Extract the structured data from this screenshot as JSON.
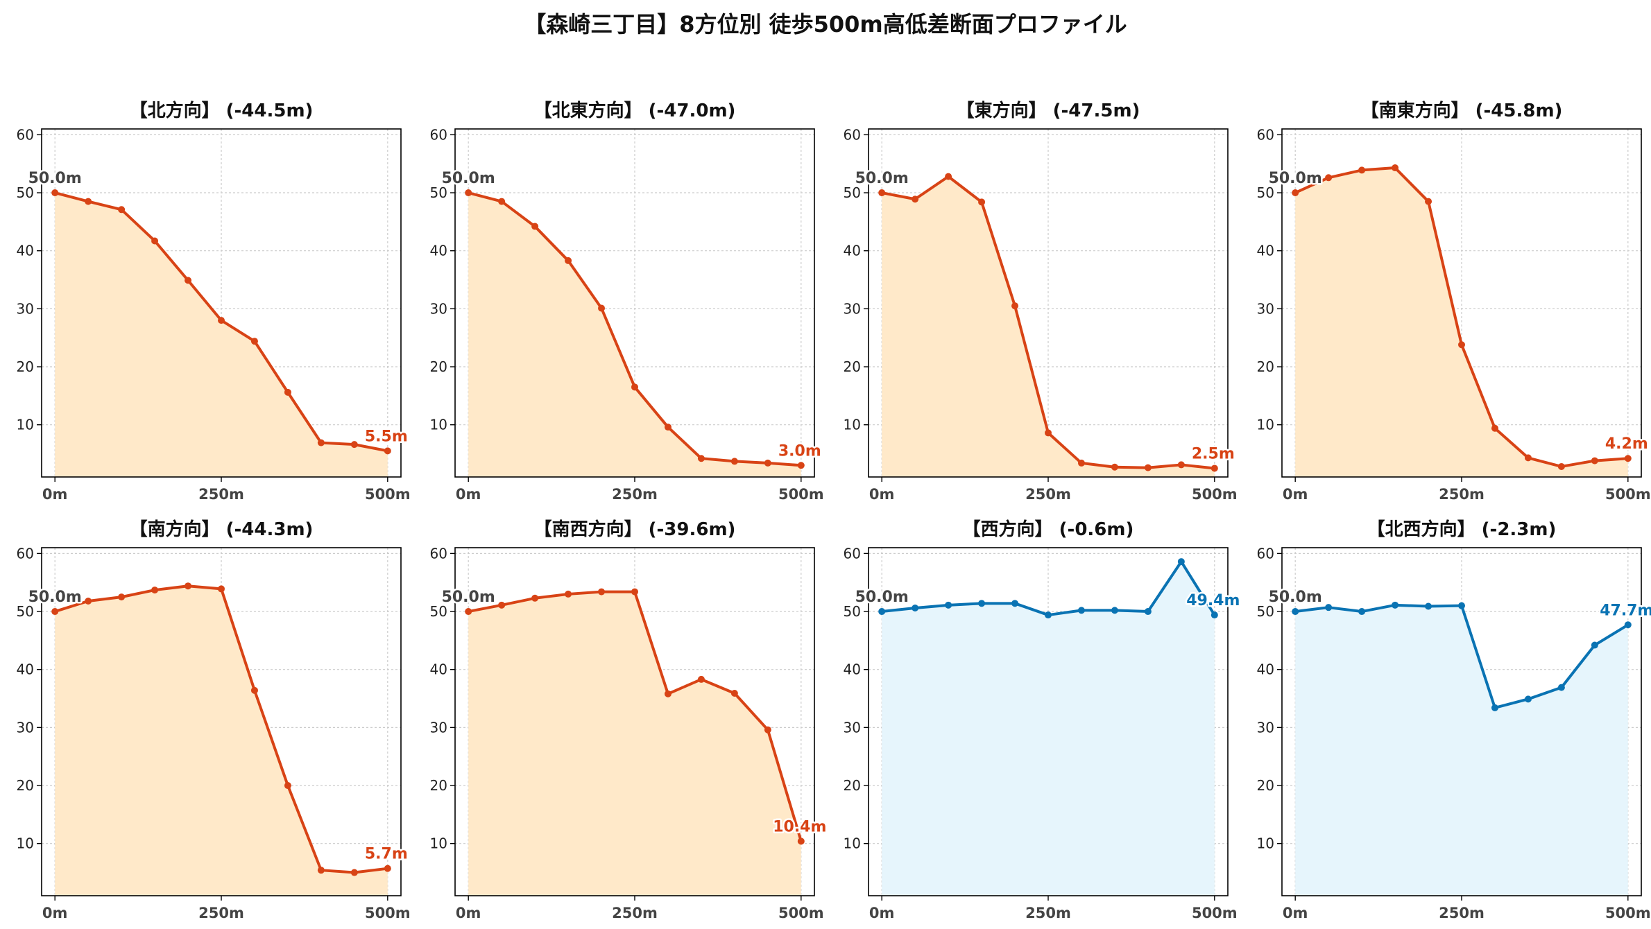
{
  "title": "【森崎三丁目】8方位別 徒歩500m高低差断面プロファイル",
  "colors": {
    "down_line": "#d84315",
    "down_fill": "#ffe9c9",
    "flat_line": "#0a73b3",
    "flat_fill": "#e6f5fc",
    "start_label": "#444444",
    "grid": "#cccccc"
  },
  "chart_data": [
    {
      "type": "line",
      "title": "【北方向】 (-44.5m)",
      "theme": "down",
      "x": [
        0,
        50,
        100,
        150,
        200,
        250,
        300,
        350,
        400,
        450,
        500
      ],
      "y": [
        50.0,
        48.5,
        47.1,
        41.7,
        34.9,
        28.0,
        24.4,
        15.6,
        6.9,
        6.6,
        5.5
      ],
      "xticks": [
        0,
        250,
        500
      ],
      "xtick_labels": [
        "0m",
        "250m",
        "500m"
      ],
      "yticks": [
        10,
        20,
        30,
        40,
        50,
        60
      ],
      "ytick_labels": [
        "10",
        "20",
        "30",
        "40",
        "50",
        "60"
      ],
      "xlim": [
        -20,
        520
      ],
      "ylim": [
        1,
        61
      ],
      "start_label": "50.0m",
      "end_label": "5.5m"
    },
    {
      "type": "line",
      "title": "【北東方向】 (-47.0m)",
      "theme": "down",
      "x": [
        0,
        50,
        100,
        150,
        200,
        250,
        300,
        350,
        400,
        450,
        500
      ],
      "y": [
        50.0,
        48.5,
        44.2,
        38.3,
        30.1,
        16.5,
        9.6,
        4.2,
        3.7,
        3.4,
        3.0
      ],
      "xticks": [
        0,
        250,
        500
      ],
      "xtick_labels": [
        "0m",
        "250m",
        "500m"
      ],
      "yticks": [
        10,
        20,
        30,
        40,
        50,
        60
      ],
      "ytick_labels": [
        "10",
        "20",
        "30",
        "40",
        "50",
        "60"
      ],
      "xlim": [
        -20,
        520
      ],
      "ylim": [
        1,
        61
      ],
      "start_label": "50.0m",
      "end_label": "3.0m"
    },
    {
      "type": "line",
      "title": "【東方向】 (-47.5m)",
      "theme": "down",
      "x": [
        0,
        50,
        100,
        150,
        200,
        250,
        300,
        350,
        400,
        450,
        500
      ],
      "y": [
        50.0,
        48.9,
        52.8,
        48.4,
        30.5,
        8.6,
        3.4,
        2.7,
        2.6,
        3.1,
        2.5
      ],
      "xticks": [
        0,
        250,
        500
      ],
      "xtick_labels": [
        "0m",
        "250m",
        "500m"
      ],
      "yticks": [
        10,
        20,
        30,
        40,
        50,
        60
      ],
      "ytick_labels": [
        "10",
        "20",
        "30",
        "40",
        "50",
        "60"
      ],
      "xlim": [
        -20,
        520
      ],
      "ylim": [
        1,
        61
      ],
      "start_label": "50.0m",
      "end_label": "2.5m"
    },
    {
      "type": "line",
      "title": "【南東方向】 (-45.8m)",
      "theme": "down",
      "x": [
        0,
        50,
        100,
        150,
        200,
        250,
        300,
        350,
        400,
        450,
        500
      ],
      "y": [
        50.0,
        52.6,
        53.9,
        54.3,
        48.5,
        23.8,
        9.4,
        4.3,
        2.8,
        3.8,
        4.2
      ],
      "xticks": [
        0,
        250,
        500
      ],
      "xtick_labels": [
        "0m",
        "250m",
        "500m"
      ],
      "yticks": [
        10,
        20,
        30,
        40,
        50,
        60
      ],
      "ytick_labels": [
        "10",
        "20",
        "30",
        "40",
        "50",
        "60"
      ],
      "xlim": [
        -20,
        520
      ],
      "ylim": [
        1,
        61
      ],
      "start_label": "50.0m",
      "end_label": "4.2m"
    },
    {
      "type": "line",
      "title": "【南方向】 (-44.3m)",
      "theme": "down",
      "x": [
        0,
        50,
        100,
        150,
        200,
        250,
        300,
        350,
        400,
        450,
        500
      ],
      "y": [
        50.0,
        51.8,
        52.5,
        53.7,
        54.4,
        53.9,
        36.4,
        20.0,
        5.4,
        5.0,
        5.7
      ],
      "xticks": [
        0,
        250,
        500
      ],
      "xtick_labels": [
        "0m",
        "250m",
        "500m"
      ],
      "yticks": [
        10,
        20,
        30,
        40,
        50,
        60
      ],
      "ytick_labels": [
        "10",
        "20",
        "30",
        "40",
        "50",
        "60"
      ],
      "xlim": [
        -20,
        520
      ],
      "ylim": [
        1,
        61
      ],
      "start_label": "50.0m",
      "end_label": "5.7m"
    },
    {
      "type": "line",
      "title": "【南西方向】 (-39.6m)",
      "theme": "down",
      "x": [
        0,
        50,
        100,
        150,
        200,
        250,
        300,
        350,
        400,
        450,
        500
      ],
      "y": [
        50.0,
        51.1,
        52.3,
        53.0,
        53.4,
        53.4,
        35.8,
        38.3,
        35.9,
        29.6,
        10.4
      ],
      "xticks": [
        0,
        250,
        500
      ],
      "xtick_labels": [
        "0m",
        "250m",
        "500m"
      ],
      "yticks": [
        10,
        20,
        30,
        40,
        50,
        60
      ],
      "ytick_labels": [
        "10",
        "20",
        "30",
        "40",
        "50",
        "60"
      ],
      "xlim": [
        -20,
        520
      ],
      "ylim": [
        1,
        61
      ],
      "start_label": "50.0m",
      "end_label": "10.4m"
    },
    {
      "type": "line",
      "title": "【西方向】 (-0.6m)",
      "theme": "flat",
      "x": [
        0,
        50,
        100,
        150,
        200,
        250,
        300,
        350,
        400,
        450,
        500
      ],
      "y": [
        50.0,
        50.6,
        51.1,
        51.4,
        51.4,
        49.4,
        50.2,
        50.2,
        50.0,
        58.6,
        49.4
      ],
      "xticks": [
        0,
        250,
        500
      ],
      "xtick_labels": [
        "0m",
        "250m",
        "500m"
      ],
      "yticks": [
        10,
        20,
        30,
        40,
        50,
        60
      ],
      "ytick_labels": [
        "10",
        "20",
        "30",
        "40",
        "50",
        "60"
      ],
      "xlim": [
        -20,
        520
      ],
      "ylim": [
        1,
        61
      ],
      "start_label": "50.0m",
      "end_label": "49.4m"
    },
    {
      "type": "line",
      "title": "【北西方向】 (-2.3m)",
      "theme": "flat",
      "x": [
        0,
        50,
        100,
        150,
        200,
        250,
        300,
        350,
        400,
        450,
        500
      ],
      "y": [
        50.0,
        50.7,
        50.0,
        51.1,
        50.9,
        51.0,
        33.4,
        34.9,
        36.9,
        44.2,
        47.7
      ],
      "xticks": [
        0,
        250,
        500
      ],
      "xtick_labels": [
        "0m",
        "250m",
        "500m"
      ],
      "yticks": [
        10,
        20,
        30,
        40,
        50,
        60
      ],
      "ytick_labels": [
        "10",
        "20",
        "30",
        "40",
        "50",
        "60"
      ],
      "xlim": [
        -20,
        520
      ],
      "ylim": [
        1,
        61
      ],
      "start_label": "50.0m",
      "end_label": "47.7m"
    }
  ]
}
